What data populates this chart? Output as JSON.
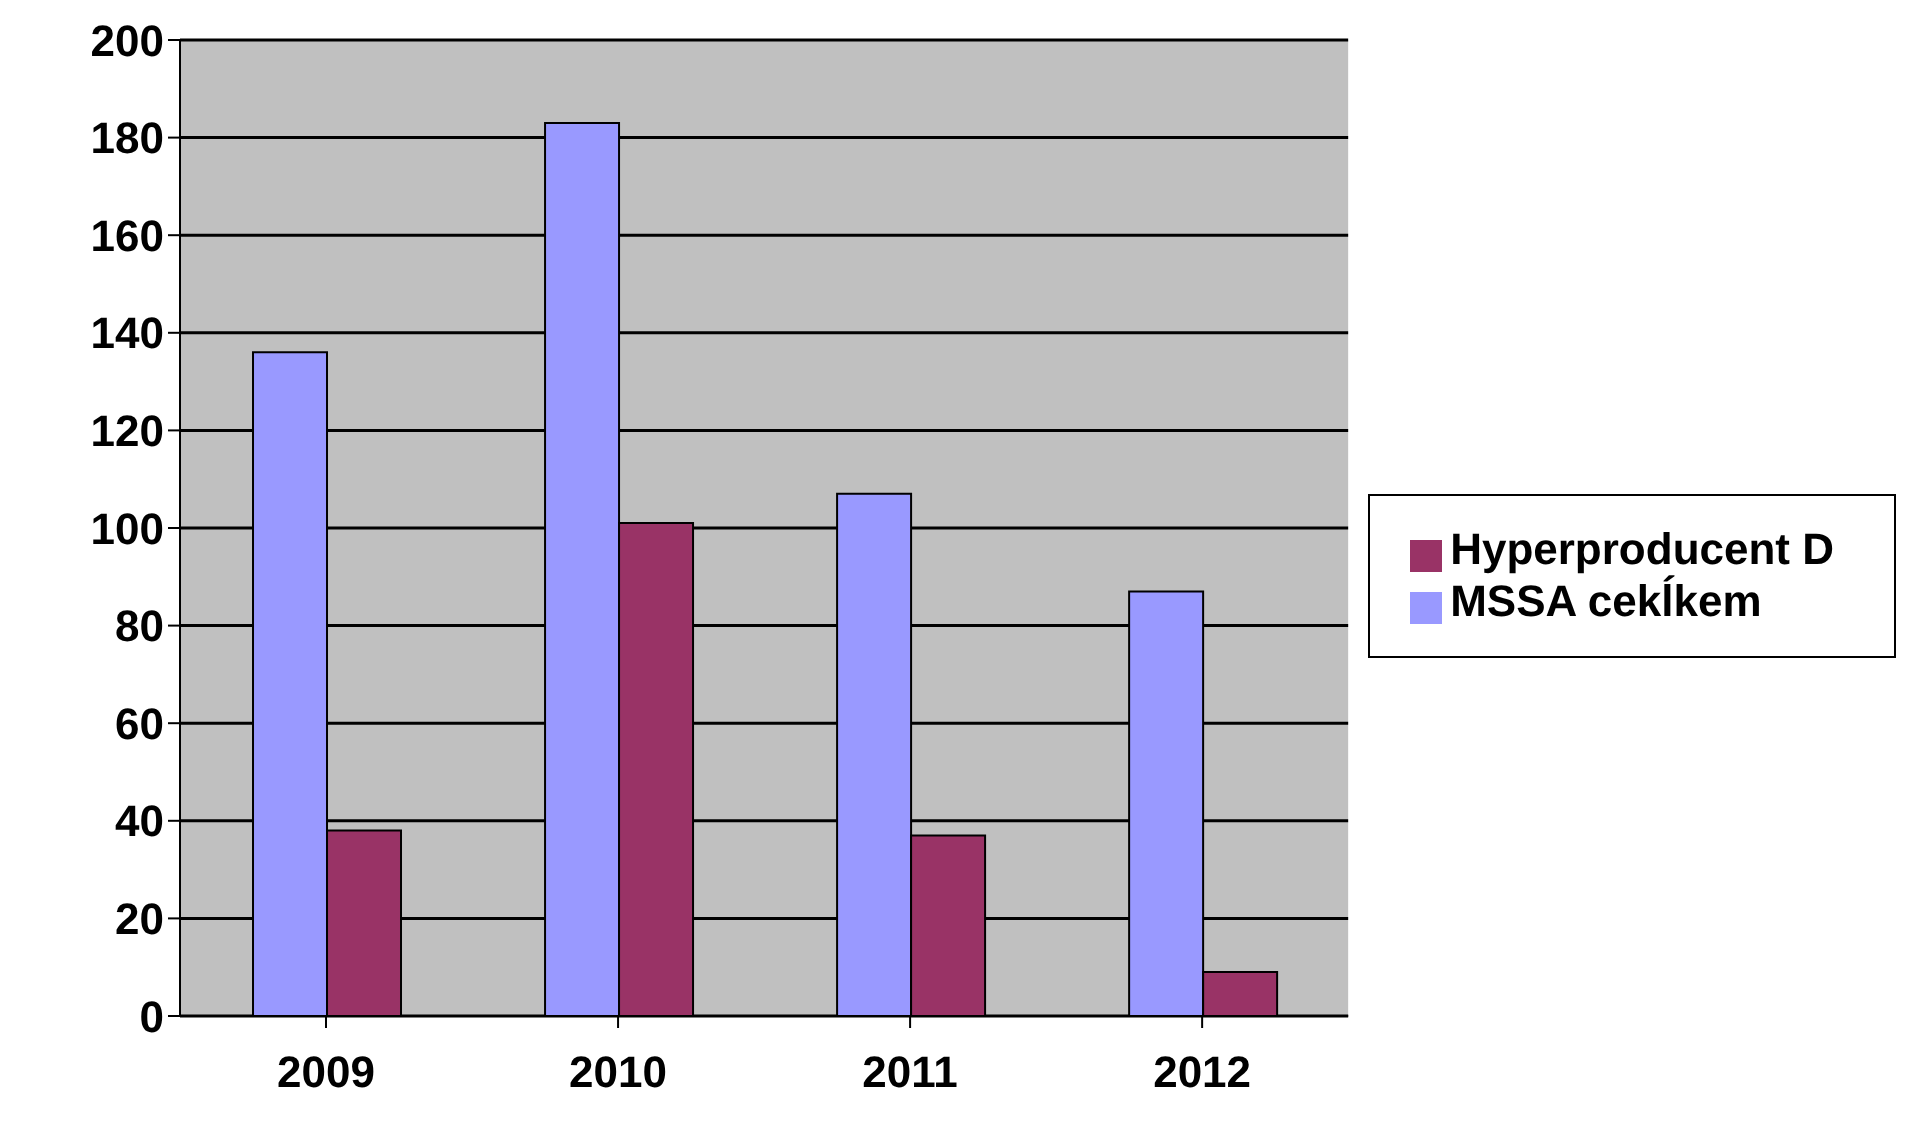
{
  "chart_data": {
    "type": "bar",
    "categories": [
      "2009",
      "2010",
      "2011",
      "2012"
    ],
    "series": [
      {
        "name": "MSSA cekĺkem",
        "color": "#9999ff",
        "values": [
          136,
          183,
          107,
          87
        ]
      },
      {
        "name": "Hyperproducent D",
        "color": "#993366",
        "values": [
          38,
          101,
          37,
          9
        ]
      }
    ],
    "ylim": [
      0,
      200
    ],
    "yticks": [
      0,
      20,
      40,
      60,
      80,
      100,
      120,
      140,
      160,
      180,
      200
    ],
    "grid": "y",
    "legend": "right"
  }
}
